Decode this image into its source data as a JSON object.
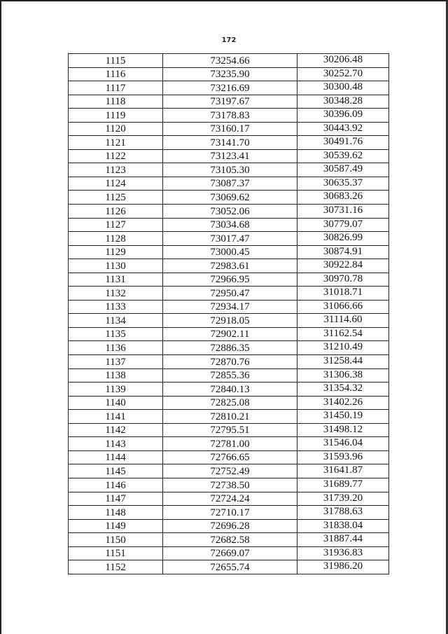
{
  "page_number": "172",
  "table": {
    "rows": [
      [
        "1115",
        "73254.66",
        "30206.48"
      ],
      [
        "1116",
        "73235.90",
        "30252.70"
      ],
      [
        "1117",
        "73216.69",
        "30300.48"
      ],
      [
        "1118",
        "73197.67",
        "30348.28"
      ],
      [
        "1119",
        "73178.83",
        "30396.09"
      ],
      [
        "1120",
        "73160.17",
        "30443.92"
      ],
      [
        "1121",
        "73141.70",
        "30491.76"
      ],
      [
        "1122",
        "73123.41",
        "30539.62"
      ],
      [
        "1123",
        "73105.30",
        "30587.49"
      ],
      [
        "1124",
        "73087.37",
        "30635.37"
      ],
      [
        "1125",
        "73069.62",
        "30683.26"
      ],
      [
        "1126",
        "73052.06",
        "30731.16"
      ],
      [
        "1127",
        "73034.68",
        "30779.07"
      ],
      [
        "1128",
        "73017.47",
        "30826.99"
      ],
      [
        "1129",
        "73000.45",
        "30874.91"
      ],
      [
        "1130",
        "72983.61",
        "30922.84"
      ],
      [
        "1131",
        "72966.95",
        "30970.78"
      ],
      [
        "1132",
        "72950.47",
        "31018.71"
      ],
      [
        "1133",
        "72934.17",
        "31066.66"
      ],
      [
        "1134",
        "72918.05",
        "31114.60"
      ],
      [
        "1135",
        "72902.11",
        "31162.54"
      ],
      [
        "1136",
        "72886.35",
        "31210.49"
      ],
      [
        "1137",
        "72870.76",
        "31258.44"
      ],
      [
        "1138",
        "72855.36",
        "31306.38"
      ],
      [
        "1139",
        "72840.13",
        "31354.32"
      ],
      [
        "1140",
        "72825.08",
        "31402.26"
      ],
      [
        "1141",
        "72810.21",
        "31450.19"
      ],
      [
        "1142",
        "72795.51",
        "31498.12"
      ],
      [
        "1143",
        "72781.00",
        "31546.04"
      ],
      [
        "1144",
        "72766.65",
        "31593.96"
      ],
      [
        "1145",
        "72752.49",
        "31641.87"
      ],
      [
        "1146",
        "72738.50",
        "31689.77"
      ],
      [
        "1147",
        "72724.24",
        "31739.20"
      ],
      [
        "1148",
        "72710.17",
        "31788.63"
      ],
      [
        "1149",
        "72696.28",
        "31838.04"
      ],
      [
        "1150",
        "72682.58",
        "31887.44"
      ],
      [
        "1151",
        "72669.07",
        "31936.83"
      ],
      [
        "1152",
        "72655.74",
        "31986.20"
      ]
    ]
  }
}
